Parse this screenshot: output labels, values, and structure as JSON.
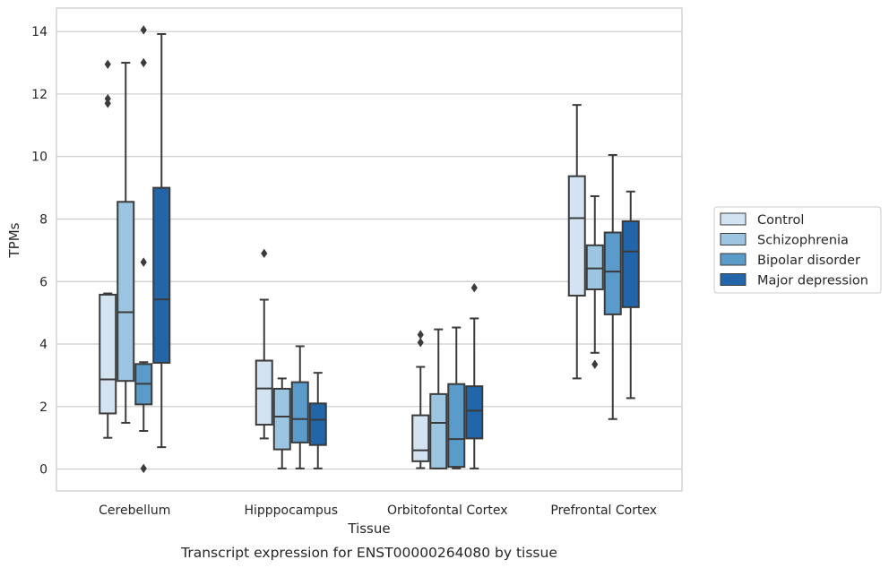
{
  "chart_data": {
    "type": "box",
    "xlabel": "Tissue",
    "ylabel": "TPMs",
    "caption": "Transcript expression for ENST00000264080 by tissue",
    "ylim": [
      -0.7,
      14.75
    ],
    "yticks": [
      0,
      2,
      4,
      6,
      8,
      10,
      12,
      14
    ],
    "grid": true,
    "legend_position": "right",
    "categories": [
      "Cerebellum",
      "Hipppocampus",
      "Orbitofontal Cortex",
      "Prefrontal Cortex"
    ],
    "series": [
      {
        "name": "Control",
        "color": "#d3e3f2",
        "boxes": [
          {
            "whislo": 1.0,
            "q1": 1.78,
            "median": 2.87,
            "q3": 5.58,
            "whishi": 5.62,
            "fliers": []
          },
          {
            "whislo": 0.98,
            "q1": 1.42,
            "median": 2.58,
            "q3": 3.47,
            "whishi": 5.42,
            "fliers": [
              6.9
            ]
          },
          {
            "whislo": 0.03,
            "q1": 0.25,
            "median": 0.6,
            "q3": 1.72,
            "whishi": 3.27,
            "fliers": [
              4.05,
              4.3
            ]
          },
          {
            "whislo": 2.9,
            "q1": 5.55,
            "median": 8.03,
            "q3": 9.37,
            "whishi": 11.65,
            "fliers": []
          }
        ]
      },
      {
        "name": "Schizophrenia",
        "color": "#9bc5e0",
        "boxes": [
          {
            "whislo": 1.48,
            "q1": 2.82,
            "median": 5.02,
            "q3": 8.55,
            "whishi": 13.0,
            "fliers": []
          },
          {
            "whislo": 0.02,
            "q1": 0.63,
            "median": 1.68,
            "q3": 2.57,
            "whishi": 2.9,
            "fliers": []
          },
          {
            "whislo": 0.02,
            "q1": 0.02,
            "median": 1.48,
            "q3": 2.4,
            "whishi": 4.47,
            "fliers": []
          },
          {
            "whislo": 3.72,
            "q1": 5.75,
            "median": 6.42,
            "q3": 7.16,
            "whishi": 8.73,
            "fliers": [
              3.35
            ]
          }
        ]
      },
      {
        "name": "Bipolar disorder",
        "color": "#5a9bca",
        "boxes": [
          {
            "whislo": 1.22,
            "q1": 2.07,
            "median": 2.73,
            "q3": 3.36,
            "whishi": 3.42,
            "fliers": [
              0.02,
              6.62,
              13.0,
              14.05
            ]
          },
          {
            "whislo": 0.02,
            "q1": 0.85,
            "median": 1.6,
            "q3": 2.78,
            "whishi": 3.93,
            "fliers": []
          },
          {
            "whislo": 0.02,
            "q1": 0.07,
            "median": 0.96,
            "q3": 2.72,
            "whishi": 4.53,
            "fliers": []
          },
          {
            "whislo": 1.6,
            "q1": 4.95,
            "median": 6.32,
            "q3": 7.57,
            "whishi": 10.05,
            "fliers": []
          }
        ]
      },
      {
        "name": "Major depression",
        "color": "#2265a8",
        "boxes": [
          {
            "whislo": 0.7,
            "q1": 3.4,
            "median": 5.43,
            "q3": 9.0,
            "whishi": 13.92,
            "fliers": []
          },
          {
            "whislo": 0.02,
            "q1": 0.77,
            "median": 1.58,
            "q3": 2.1,
            "whishi": 3.08,
            "fliers": []
          },
          {
            "whislo": 0.02,
            "q1": 0.98,
            "median": 1.87,
            "q3": 2.65,
            "whishi": 4.82,
            "fliers": [
              5.8
            ]
          },
          {
            "whislo": 2.27,
            "q1": 5.18,
            "median": 6.96,
            "q3": 7.93,
            "whishi": 8.88,
            "fliers": []
          }
        ]
      }
    ],
    "extra_fliers": [
      {
        "category": "Cerebellum",
        "series": "Control",
        "values": [
          11.7,
          11.85,
          12.95
        ]
      }
    ]
  }
}
